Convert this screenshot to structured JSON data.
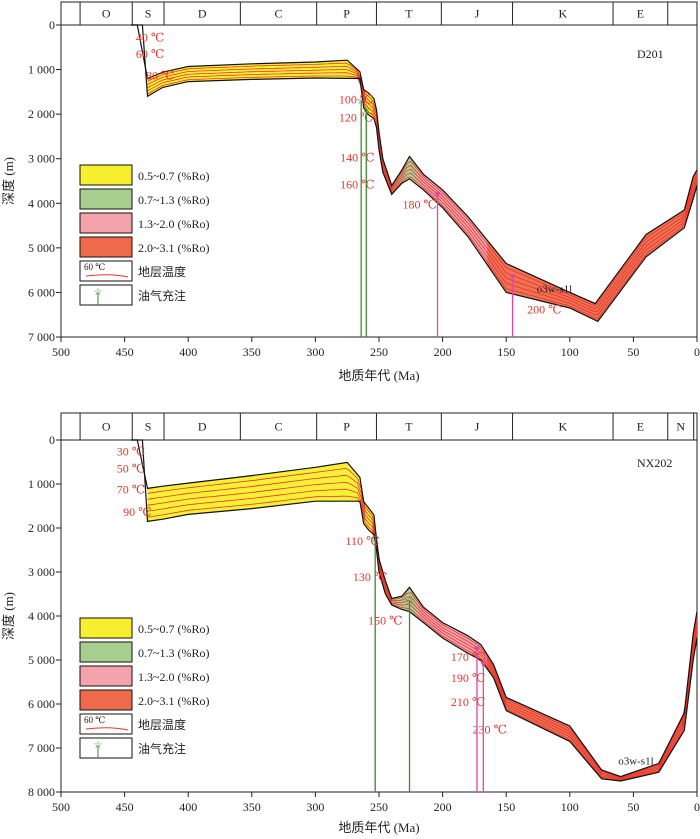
{
  "chart_data": [
    {
      "type": "burial-history",
      "well": "D201",
      "xlabel": "地质年代 (Ma)",
      "ylabel": "深度 (m)",
      "xlim": [
        500,
        0
      ],
      "ylim": [
        0,
        7000
      ],
      "x_ticks": [
        500,
        450,
        400,
        350,
        300,
        250,
        200,
        150,
        100,
        50,
        0
      ],
      "y_ticks": [
        0,
        1000,
        2000,
        3000,
        4000,
        5000,
        6000,
        7000
      ],
      "y_tick_labels": [
        "0",
        "1 000",
        "2 000",
        "3 000",
        "4 000",
        "5 000",
        "6 000",
        "7 000"
      ],
      "periods": [
        {
          "label": "O",
          "start": 485,
          "end": 444
        },
        {
          "label": "S",
          "start": 444,
          "end": 419
        },
        {
          "label": "D",
          "start": 419,
          "end": 359
        },
        {
          "label": "C",
          "start": 359,
          "end": 299
        },
        {
          "label": "P",
          "start": 299,
          "end": 252
        },
        {
          "label": "T",
          "start": 252,
          "end": 201
        },
        {
          "label": "J",
          "start": 201,
          "end": 145
        },
        {
          "label": "K",
          "start": 145,
          "end": 66
        },
        {
          "label": "E",
          "start": 66,
          "end": 23
        }
      ],
      "legend": [
        {
          "label": "0.5~0.7 (%Ro)",
          "color": "#f7ef2d"
        },
        {
          "label": "0.7~1.3 (%Ro)",
          "color": "#a8cf8e"
        },
        {
          "label": "1.3~2.0 (%Ro)",
          "color": "#f4a3ad"
        },
        {
          "label": "2.0~3.1 (%Ro)",
          "color": "#ee6a4b"
        },
        {
          "label": "地层温度",
          "sample": "60 ℃"
        },
        {
          "label": "油气充注"
        }
      ],
      "formation_label": "o3w-s1l",
      "burial_top": [
        [
          445,
          0
        ],
        [
          440,
          0
        ],
        [
          432,
          1200
        ],
        [
          420,
          1060
        ],
        [
          400,
          930
        ],
        [
          350,
          870
        ],
        [
          300,
          830
        ],
        [
          275,
          790
        ],
        [
          265,
          1050
        ],
        [
          262,
          1450
        ],
        [
          258,
          1530
        ],
        [
          254,
          1650
        ],
        [
          252,
          1900
        ],
        [
          250,
          2400
        ],
        [
          247,
          3000
        ],
        [
          240,
          3600
        ],
        [
          232,
          3250
        ],
        [
          226,
          2950
        ],
        [
          215,
          3350
        ],
        [
          200,
          3700
        ],
        [
          180,
          4300
        ],
        [
          150,
          5350
        ],
        [
          100,
          6000
        ],
        [
          80,
          6250
        ],
        [
          40,
          4700
        ],
        [
          10,
          4150
        ],
        [
          3,
          3400
        ],
        [
          0,
          3250
        ]
      ],
      "burial_base": [
        [
          445,
          0
        ],
        [
          436,
          0
        ],
        [
          432,
          1600
        ],
        [
          420,
          1400
        ],
        [
          400,
          1270
        ],
        [
          350,
          1220
        ],
        [
          300,
          1190
        ],
        [
          265,
          1200
        ],
        [
          262,
          1850
        ],
        [
          259,
          2000
        ],
        [
          254,
          2100
        ],
        [
          252,
          2300
        ],
        [
          250,
          2800
        ],
        [
          247,
          3300
        ],
        [
          240,
          3800
        ],
        [
          232,
          3550
        ],
        [
          226,
          3450
        ],
        [
          215,
          3700
        ],
        [
          200,
          4100
        ],
        [
          180,
          4750
        ],
        [
          150,
          6000
        ],
        [
          100,
          6350
        ],
        [
          78,
          6650
        ],
        [
          40,
          5200
        ],
        [
          10,
          4550
        ],
        [
          3,
          3900
        ],
        [
          0,
          3600
        ]
      ],
      "temperature_labels": [
        {
          "text": "40 ℃",
          "x": 430,
          "y": 280
        },
        {
          "text": "60 ℃",
          "x": 430,
          "y": 650
        },
        {
          "text": "80 ℃",
          "x": 422,
          "y": 1130
        },
        {
          "text": "100 ℃",
          "x": 268,
          "y": 1670
        },
        {
          "text": "120 ℃",
          "x": 268,
          "y": 2070
        },
        {
          "text": "140 ℃",
          "x": 267,
          "y": 2970
        },
        {
          "text": "160 ℃",
          "x": 267,
          "y": 3580
        },
        {
          "text": "180 ℃",
          "x": 218,
          "y": 4030
        },
        {
          "text": "200 ℃",
          "x": 120,
          "y": 6380
        }
      ],
      "charging_events": [
        {
          "age": 264,
          "depth": 1680,
          "kind": "oil"
        },
        {
          "age": 260,
          "depth": 1880,
          "kind": "oil"
        },
        {
          "age": 204,
          "depth": 3830,
          "kind": "gas"
        },
        {
          "age": 145,
          "depth": 5680,
          "kind": "gas"
        }
      ]
    },
    {
      "type": "burial-history",
      "well": "NX202",
      "xlabel": "地质年代 (Ma)",
      "ylabel": "深度 (m)",
      "xlim": [
        500,
        0
      ],
      "ylim": [
        0,
        8000
      ],
      "x_ticks": [
        500,
        450,
        400,
        350,
        300,
        250,
        200,
        150,
        100,
        50,
        0
      ],
      "y_ticks": [
        0,
        1000,
        2000,
        3000,
        4000,
        5000,
        6000,
        7000,
        8000
      ],
      "y_tick_labels": [
        "0",
        "1 000",
        "2 000",
        "3 000",
        "4 000",
        "5 000",
        "6 000",
        "7 000",
        "8 000"
      ],
      "periods": [
        {
          "label": "O",
          "start": 485,
          "end": 444
        },
        {
          "label": "S",
          "start": 444,
          "end": 419
        },
        {
          "label": "D",
          "start": 419,
          "end": 359
        },
        {
          "label": "C",
          "start": 359,
          "end": 299
        },
        {
          "label": "P",
          "start": 299,
          "end": 252
        },
        {
          "label": "T",
          "start": 252,
          "end": 201
        },
        {
          "label": "J",
          "start": 201,
          "end": 145
        },
        {
          "label": "K",
          "start": 145,
          "end": 66
        },
        {
          "label": "E",
          "start": 66,
          "end": 23
        },
        {
          "label": "N",
          "start": 23,
          "end": 2.6
        }
      ],
      "legend": [
        {
          "label": "0.5~0.7 (%Ro)",
          "color": "#f7ef2d"
        },
        {
          "label": "0.7~1.3 (%Ro)",
          "color": "#a8cf8e"
        },
        {
          "label": "1.3~2.0 (%Ro)",
          "color": "#f4a3ad"
        },
        {
          "label": "2.0~3.1 (%Ro)",
          "color": "#ee6a4b"
        },
        {
          "label": "地层温度",
          "sample": "60 ℃"
        },
        {
          "label": "油气充注"
        }
      ],
      "formation_label": "o3w-s1l",
      "burial_top": [
        [
          445,
          0
        ],
        [
          440,
          0
        ],
        [
          432,
          1100
        ],
        [
          420,
          1050
        ],
        [
          400,
          980
        ],
        [
          350,
          810
        ],
        [
          300,
          620
        ],
        [
          275,
          510
        ],
        [
          265,
          850
        ],
        [
          262,
          1400
        ],
        [
          258,
          1550
        ],
        [
          254,
          1700
        ],
        [
          252,
          2250
        ],
        [
          250,
          2700
        ],
        [
          245,
          3200
        ],
        [
          240,
          3600
        ],
        [
          232,
          3550
        ],
        [
          226,
          3350
        ],
        [
          215,
          3800
        ],
        [
          200,
          4150
        ],
        [
          180,
          4450
        ],
        [
          170,
          4650
        ],
        [
          160,
          5100
        ],
        [
          150,
          5850
        ],
        [
          100,
          6500
        ],
        [
          75,
          7500
        ],
        [
          60,
          7650
        ],
        [
          30,
          7350
        ],
        [
          10,
          6200
        ],
        [
          3,
          4400
        ],
        [
          0,
          3900
        ]
      ],
      "burial_base": [
        [
          445,
          0
        ],
        [
          436,
          0
        ],
        [
          432,
          1850
        ],
        [
          420,
          1800
        ],
        [
          400,
          1690
        ],
        [
          350,
          1560
        ],
        [
          300,
          1390
        ],
        [
          265,
          1390
        ],
        [
          262,
          1900
        ],
        [
          258,
          2050
        ],
        [
          254,
          2150
        ],
        [
          252,
          2500
        ],
        [
          250,
          3000
        ],
        [
          245,
          3500
        ],
        [
          240,
          3750
        ],
        [
          232,
          3850
        ],
        [
          226,
          3900
        ],
        [
          215,
          4150
        ],
        [
          200,
          4500
        ],
        [
          180,
          4850
        ],
        [
          170,
          5000
        ],
        [
          160,
          5400
        ],
        [
          150,
          6150
        ],
        [
          100,
          6850
        ],
        [
          75,
          7700
        ],
        [
          60,
          7750
        ],
        [
          30,
          7550
        ],
        [
          10,
          6600
        ],
        [
          3,
          5000
        ],
        [
          0,
          4500
        ]
      ],
      "temperature_labels": [
        {
          "text": "30 ℃",
          "x": 445,
          "y": 260
        },
        {
          "text": "50 ℃",
          "x": 445,
          "y": 650
        },
        {
          "text": "70 ℃",
          "x": 445,
          "y": 1120
        },
        {
          "text": "90 ℃",
          "x": 440,
          "y": 1640
        },
        {
          "text": "110 ℃",
          "x": 263,
          "y": 2300
        },
        {
          "text": "130 ℃",
          "x": 257,
          "y": 3110
        },
        {
          "text": "150 ℃",
          "x": 245,
          "y": 4100
        },
        {
          "text": "170 ℃",
          "x": 180,
          "y": 4930
        },
        {
          "text": "190 ℃",
          "x": 180,
          "y": 5410
        },
        {
          "text": "210 ℃",
          "x": 180,
          "y": 5950
        },
        {
          "text": "230 ℃",
          "x": 163,
          "y": 6580
        }
      ],
      "charging_events": [
        {
          "age": 253,
          "depth": 2230,
          "kind": "oil"
        },
        {
          "age": 226,
          "depth": 3640,
          "kind": "oil"
        },
        {
          "age": 173,
          "depth": 4780,
          "kind": "gas"
        },
        {
          "age": 168,
          "depth": 5130,
          "kind": "gas"
        }
      ]
    }
  ]
}
